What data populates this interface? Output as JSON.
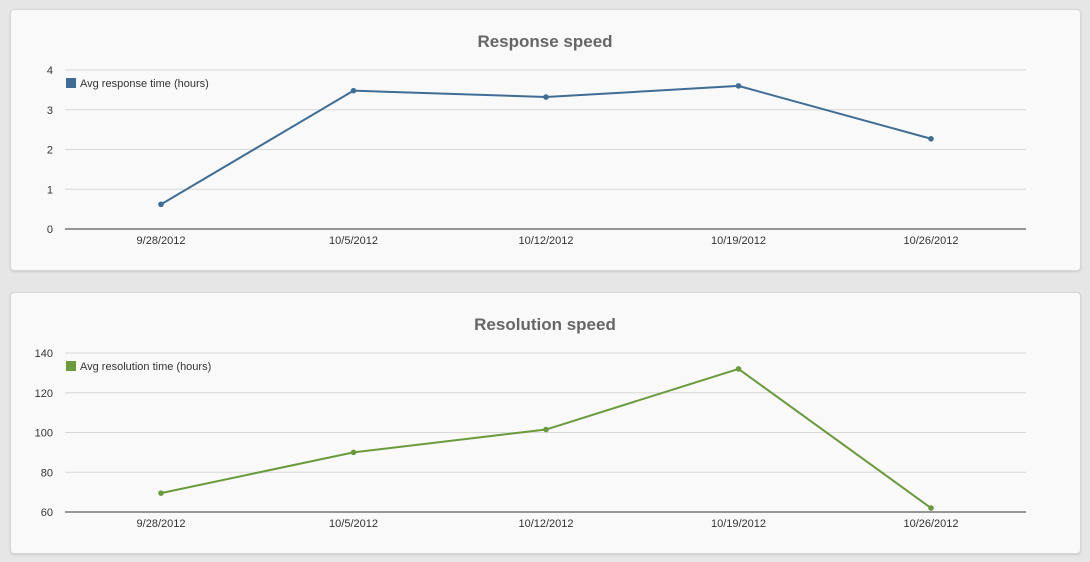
{
  "charts": [
    {
      "title": "Response speed",
      "legend_label": "Avg response time (hours)",
      "color": "#3f6d95"
    },
    {
      "title": "Resolution speed",
      "legend_label": "Avg resolution time (hours)",
      "color": "#6b9a3c"
    }
  ],
  "chart_data": [
    {
      "type": "line",
      "title": "Response speed",
      "x": [
        "9/28/2012",
        "10/5/2012",
        "10/12/2012",
        "10/19/2012",
        "10/26/2012"
      ],
      "series": [
        {
          "name": "Avg response time (hours)",
          "values": [
            0.62,
            3.48,
            3.32,
            3.6,
            2.27
          ],
          "color": "#3f6d95"
        }
      ],
      "ylim": [
        0,
        4
      ],
      "yticks": [
        0,
        1,
        2,
        3,
        4
      ],
      "grid": true,
      "legend_position": "top-left"
    },
    {
      "type": "line",
      "title": "Resolution speed",
      "x": [
        "9/28/2012",
        "10/5/2012",
        "10/12/2012",
        "10/19/2012",
        "10/26/2012"
      ],
      "series": [
        {
          "name": "Avg resolution time (hours)",
          "values": [
            69.5,
            90,
            101.5,
            132,
            62
          ],
          "color": "#6b9a3c"
        }
      ],
      "ylim": [
        60,
        140
      ],
      "yticks": [
        60,
        80,
        100,
        120,
        140
      ],
      "grid": true,
      "legend_position": "top-left"
    }
  ]
}
